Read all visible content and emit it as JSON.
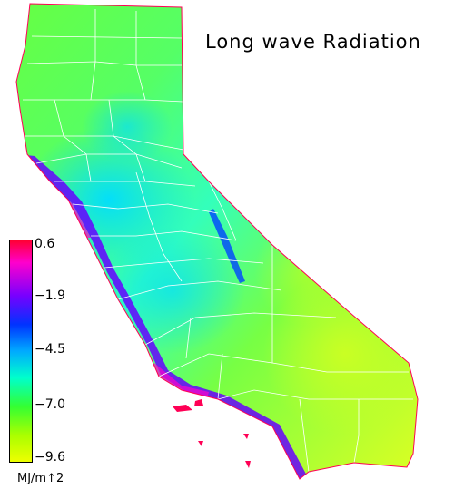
{
  "title": "Long wave Radiation",
  "legend": {
    "units": "MJ/m↑2",
    "ticks": [
      "0.6",
      "−1.9",
      "−4.5",
      "−7.0",
      "−9.6"
    ],
    "min": -9.6,
    "max": 0.6,
    "colors": [
      "#ff0033",
      "#ff00cc",
      "#7700ff",
      "#0033ff",
      "#00aaff",
      "#00ffcc",
      "#33ff33",
      "#aaff00",
      "#eeff00"
    ]
  },
  "colors": {
    "north": "#66ff44",
    "central_valley": "#33ffaa",
    "bay_area": "#00ddff",
    "desert": "#ccff22",
    "coast": "#6600ff",
    "county_lines": "#ffffff"
  }
}
